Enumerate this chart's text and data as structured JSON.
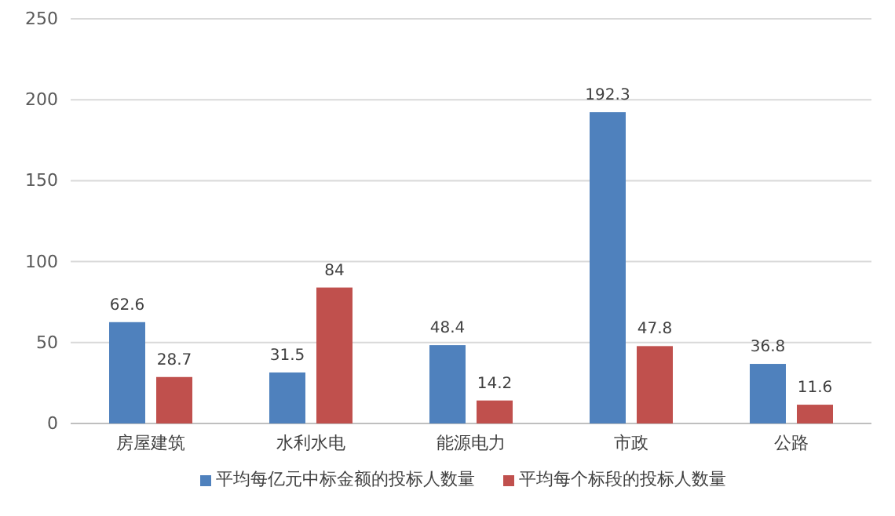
{
  "chart_data": {
    "type": "bar",
    "categories": [
      "房屋建筑",
      "水利水电",
      "能源电力",
      "市政",
      "公路"
    ],
    "series": [
      {
        "name": "平均每亿元中标金额的投标人数量",
        "color": "#4f81bd",
        "values": [
          62.6,
          31.5,
          48.4,
          192.3,
          36.8
        ]
      },
      {
        "name": "平均每个标段的投标人数量",
        "color": "#c0504d",
        "values": [
          28.7,
          84,
          14.2,
          47.8,
          11.6
        ]
      }
    ],
    "ylim": [
      0,
      250
    ],
    "yticks": [
      0,
      50,
      100,
      150,
      200,
      250
    ],
    "grid": "y",
    "legend": "bottom",
    "data_labels": true
  }
}
